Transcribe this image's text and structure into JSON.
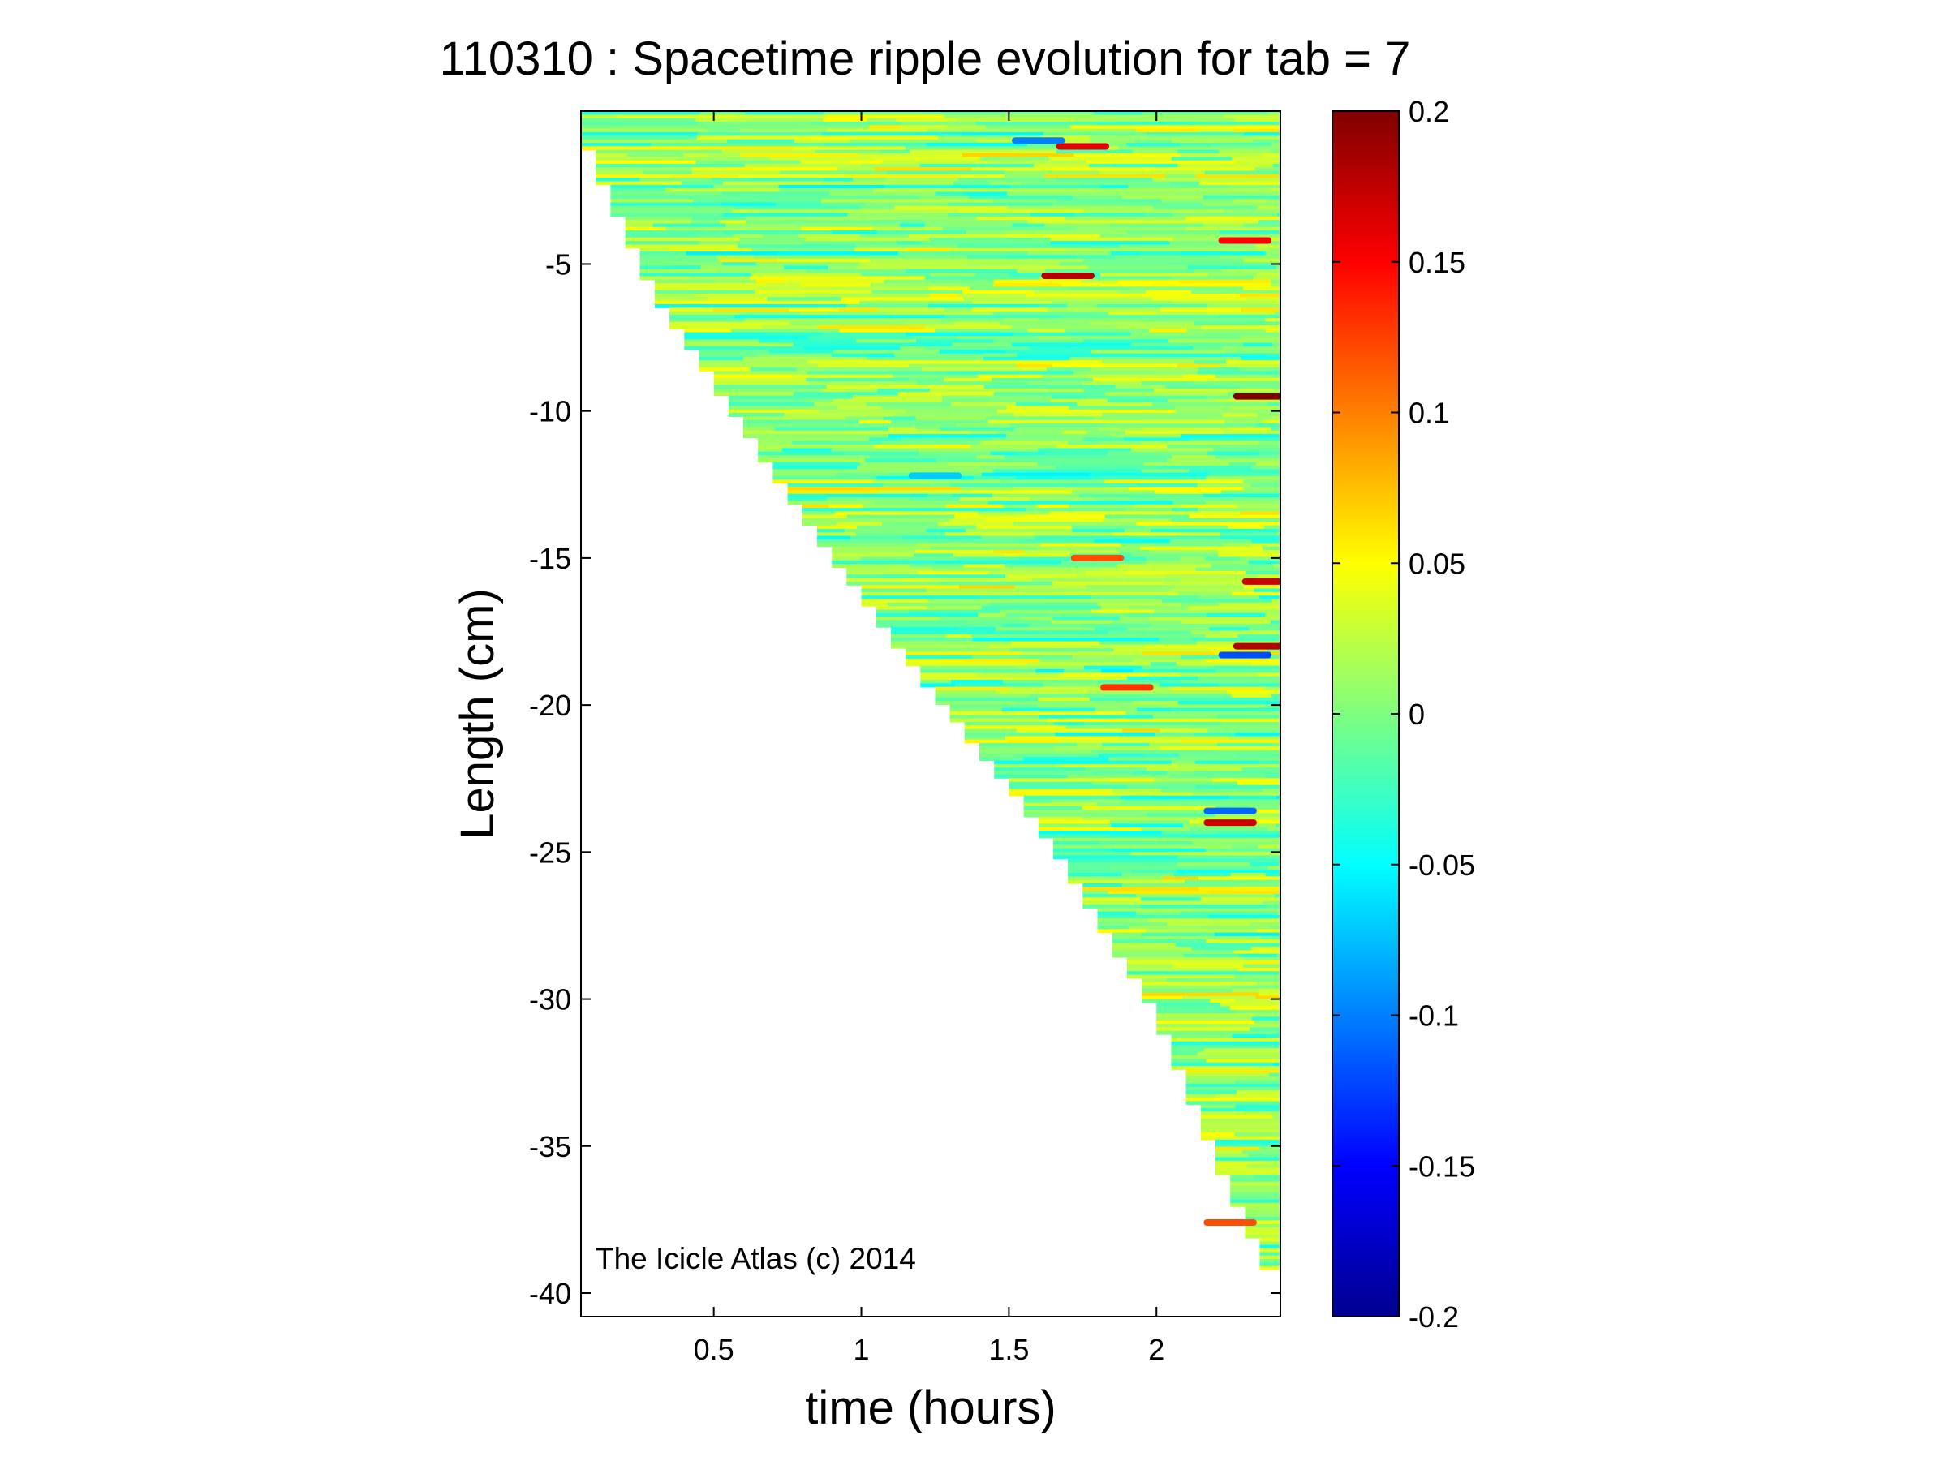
{
  "chart_data": {
    "type": "heatmap",
    "title": "110310 : Spacetime ripple evolution for tab = 7",
    "xlabel": "time (hours)",
    "ylabel": "Length (cm)",
    "xlim": [
      0.05,
      2.42
    ],
    "ylim": [
      -40.8,
      0.2
    ],
    "xticks": [
      0.5,
      1,
      1.5,
      2
    ],
    "xtick_labels": [
      "0.5",
      "1",
      "1.5",
      "2"
    ],
    "yticks": [
      -5,
      -10,
      -15,
      -20,
      -25,
      -30,
      -35,
      -40
    ],
    "ytick_labels": [
      "-5",
      "-10",
      "-15",
      "-20",
      "-25",
      "-30",
      "-35",
      "-40"
    ],
    "colorbar": {
      "colormap": "jet",
      "range": [
        -0.2,
        0.2
      ],
      "ticks": [
        0.2,
        0.15,
        0.1,
        0.05,
        0,
        -0.05,
        -0.1,
        -0.15,
        -0.2
      ],
      "tick_labels": [
        "0.2",
        "0.15",
        "0.1",
        "0.05",
        "0",
        "-0.05",
        "-0.1",
        "-0.15",
        "-0.2"
      ]
    },
    "data_boundary": {
      "description_points": [
        {
          "time": 0.07,
          "length": -1.0
        },
        {
          "time": 0.3,
          "length": -6.0
        },
        {
          "time": 0.8,
          "length": -13.5
        },
        {
          "time": 1.2,
          "length": -19.0
        },
        {
          "time": 1.6,
          "length": -24.0
        },
        {
          "time": 2.0,
          "length": -30.5
        },
        {
          "time": 2.25,
          "length": -36.5
        },
        {
          "time": 2.38,
          "length": -39.2
        }
      ]
    },
    "value_summary": {
      "typical_range": [
        -0.05,
        0.06
      ],
      "extreme_features": [
        {
          "time": 1.75,
          "length": -1.0,
          "value": 0.16
        },
        {
          "time": 1.7,
          "length": -5.4,
          "value": 0.18
        },
        {
          "time": 2.3,
          "length": -4.2,
          "value": 0.15
        },
        {
          "time": 2.35,
          "length": -9.5,
          "value": 0.2
        },
        {
          "time": 1.8,
          "length": -15.0,
          "value": 0.12
        },
        {
          "time": 2.38,
          "length": -15.8,
          "value": 0.17
        },
        {
          "time": 2.35,
          "length": -18.0,
          "value": 0.18
        },
        {
          "time": 2.3,
          "length": -18.3,
          "value": -0.12
        },
        {
          "time": 1.9,
          "length": -19.4,
          "value": 0.13
        },
        {
          "time": 2.25,
          "length": -24.0,
          "value": 0.17
        },
        {
          "time": 2.25,
          "length": -23.6,
          "value": -0.11
        },
        {
          "time": 1.25,
          "length": -12.2,
          "value": -0.07
        },
        {
          "time": 1.6,
          "length": -0.8,
          "value": -0.1
        },
        {
          "time": 2.25,
          "length": -37.6,
          "value": 0.12
        }
      ]
    }
  },
  "credit": "The Icicle Atlas (c) 2014"
}
